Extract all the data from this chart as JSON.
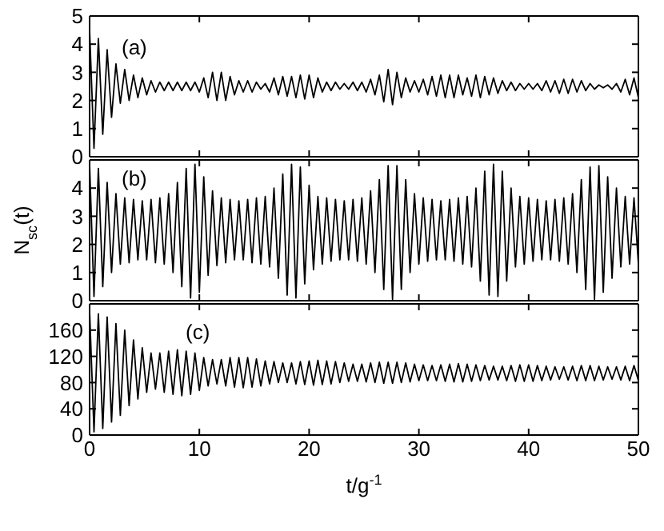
{
  "chart_data": [
    {
      "type": "line",
      "annotations": [
        "(a)"
      ],
      "marker": "none",
      "line_style": "solid",
      "tick_labels": "y",
      "xlim": [
        0,
        50
      ],
      "xticks": [
        0,
        10,
        20,
        30,
        40,
        50
      ],
      "ylim": [
        0,
        5
      ],
      "yticks": [
        0,
        1,
        2,
        3,
        4,
        5
      ],
      "x": [
        0,
        0.4,
        0.8,
        1.2,
        1.6,
        2,
        2.4,
        2.8,
        3.2,
        3.6,
        4,
        4.4,
        4.8,
        5.2,
        5.6,
        6,
        6.4,
        6.8,
        7.2,
        7.6,
        8,
        8.4,
        8.8,
        9.2,
        9.6,
        10,
        10.4,
        10.8,
        11.2,
        11.6,
        12,
        12.4,
        12.8,
        13.2,
        13.6,
        14,
        14.4,
        14.8,
        15.2,
        15.6,
        16,
        16.4,
        16.8,
        17.2,
        17.6,
        18,
        18.4,
        18.8,
        19.2,
        19.6,
        20,
        20.4,
        20.8,
        21.2,
        21.6,
        22,
        22.4,
        22.8,
        23.2,
        23.6,
        24,
        24.4,
        24.8,
        25.2,
        25.6,
        26,
        26.4,
        26.8,
        27.2,
        27.6,
        28,
        28.4,
        28.8,
        29.2,
        29.6,
        30,
        30.4,
        30.8,
        31.2,
        31.6,
        32,
        32.4,
        32.8,
        33.2,
        33.6,
        34,
        34.4,
        34.8,
        35.2,
        35.6,
        36,
        36.4,
        36.8,
        37.2,
        37.6,
        38,
        38.4,
        38.8,
        39.2,
        39.6,
        40,
        40.4,
        40.8,
        41.2,
        41.6,
        42,
        42.4,
        42.8,
        43.2,
        43.6,
        44,
        44.4,
        44.8,
        45.2,
        45.6,
        46,
        46.4,
        46.8,
        47.2,
        47.6,
        48,
        48.4,
        48.8,
        49.2,
        49.6,
        50
      ],
      "series": [
        {
          "color": "#000000",
          "values": [
            4.5,
            0.3,
            4.2,
            0.8,
            3.8,
            1.4,
            3.3,
            1.9,
            3.1,
            2.0,
            2.9,
            2.1,
            2.8,
            2.2,
            2.7,
            2.3,
            2.65,
            2.35,
            2.65,
            2.35,
            2.65,
            2.35,
            2.65,
            2.35,
            2.65,
            2.3,
            2.8,
            2.1,
            3.0,
            2.0,
            3.0,
            2.0,
            2.85,
            2.2,
            2.7,
            2.3,
            2.7,
            2.3,
            2.65,
            2.4,
            2.6,
            2.3,
            2.8,
            2.2,
            2.85,
            2.15,
            2.85,
            2.1,
            2.9,
            2.05,
            2.9,
            2.1,
            2.8,
            2.3,
            2.65,
            2.35,
            2.65,
            2.4,
            2.6,
            2.4,
            2.65,
            2.35,
            2.65,
            2.3,
            2.75,
            2.2,
            2.9,
            1.95,
            3.1,
            1.85,
            3.0,
            2.1,
            2.8,
            2.3,
            2.7,
            2.3,
            2.75,
            2.2,
            2.85,
            2.15,
            2.9,
            2.1,
            2.9,
            2.1,
            2.9,
            2.2,
            2.8,
            2.15,
            2.9,
            2.1,
            2.85,
            2.2,
            2.8,
            2.25,
            2.7,
            2.35,
            2.65,
            2.35,
            2.6,
            2.4,
            2.6,
            2.4,
            2.6,
            2.35,
            2.7,
            2.3,
            2.7,
            2.25,
            2.75,
            2.25,
            2.75,
            2.3,
            2.7,
            2.35,
            2.6,
            2.4,
            2.55,
            2.45,
            2.55,
            2.4,
            2.6,
            2.3,
            2.75,
            2.2,
            2.8,
            2.1
          ]
        }
      ]
    },
    {
      "type": "line",
      "annotations": [
        "(b)"
      ],
      "ylabel": "N$_{sc}$(t)",
      "marker": "none",
      "line_style": "solid",
      "tick_labels": "y",
      "xlim": [
        0,
        50
      ],
      "xticks": [
        0,
        10,
        20,
        30,
        40,
        50
      ],
      "ylim": [
        0,
        5
      ],
      "yticks": [
        0,
        1,
        2,
        3,
        4
      ],
      "x": [
        0,
        0.4,
        0.8,
        1.2,
        1.6,
        2,
        2.4,
        2.8,
        3.2,
        3.6,
        4,
        4.4,
        4.8,
        5.2,
        5.6,
        6,
        6.4,
        6.8,
        7.2,
        7.6,
        8,
        8.4,
        8.8,
        9.2,
        9.6,
        10,
        10.4,
        10.8,
        11.2,
        11.6,
        12,
        12.4,
        12.8,
        13.2,
        13.6,
        14,
        14.4,
        14.8,
        15.2,
        15.6,
        16,
        16.4,
        16.8,
        17.2,
        17.6,
        18,
        18.4,
        18.8,
        19.2,
        19.6,
        20,
        20.4,
        20.8,
        21.2,
        21.6,
        22,
        22.4,
        22.8,
        23.2,
        23.6,
        24,
        24.4,
        24.8,
        25.2,
        25.6,
        26,
        26.4,
        26.8,
        27.2,
        27.6,
        28,
        28.4,
        28.8,
        29.2,
        29.6,
        30,
        30.4,
        30.8,
        31.2,
        31.6,
        32,
        32.4,
        32.8,
        33.2,
        33.6,
        34,
        34.4,
        34.8,
        35.2,
        35.6,
        36,
        36.4,
        36.8,
        37.2,
        37.6,
        38,
        38.4,
        38.8,
        39.2,
        39.6,
        40,
        40.4,
        40.8,
        41.2,
        41.6,
        42,
        42.4,
        42.8,
        43.2,
        43.6,
        44,
        44.4,
        44.8,
        45.2,
        45.6,
        46,
        46.4,
        46.8,
        47.2,
        47.6,
        48,
        48.4,
        48.8,
        49.2,
        49.6,
        50
      ],
      "series": [
        {
          "color": "#000000",
          "values": [
            4.85,
            0.15,
            4.7,
            0.5,
            4.2,
            1.0,
            3.8,
            1.3,
            3.65,
            1.35,
            3.6,
            1.45,
            3.55,
            1.45,
            3.6,
            1.35,
            3.65,
            1.3,
            3.8,
            1.0,
            4.2,
            0.5,
            4.7,
            0.1,
            4.85,
            0.3,
            4.4,
            0.9,
            3.9,
            1.25,
            3.65,
            1.35,
            3.6,
            1.45,
            3.55,
            1.45,
            3.6,
            1.35,
            3.65,
            1.3,
            3.7,
            1.2,
            4.0,
            0.8,
            4.5,
            0.2,
            4.85,
            0.1,
            4.75,
            0.6,
            4.1,
            1.1,
            3.7,
            1.3,
            3.65,
            1.4,
            3.6,
            1.45,
            3.55,
            1.45,
            3.6,
            1.4,
            3.65,
            1.3,
            3.9,
            1.0,
            4.3,
            0.4,
            4.8,
            0.05,
            4.8,
            0.4,
            4.3,
            1.0,
            3.8,
            1.3,
            3.65,
            1.4,
            3.6,
            1.45,
            3.55,
            1.45,
            3.6,
            1.4,
            3.65,
            1.3,
            3.7,
            1.2,
            4.0,
            0.7,
            4.6,
            0.2,
            4.85,
            0.15,
            4.6,
            0.7,
            4.0,
            1.2,
            3.7,
            1.3,
            3.65,
            1.4,
            3.6,
            1.45,
            3.55,
            1.45,
            3.6,
            1.4,
            3.65,
            1.3,
            3.8,
            1.0,
            4.3,
            0.4,
            4.75,
            0.05,
            4.8,
            0.3,
            4.4,
            0.8,
            4.0,
            1.2,
            3.7,
            1.3,
            3.65,
            1.3
          ]
        }
      ]
    },
    {
      "type": "line",
      "annotations": [
        "(c)"
      ],
      "xlabel": "t/g$^{-1}$",
      "marker": "none",
      "line_style": "solid",
      "xlim": [
        0,
        50
      ],
      "xticks": [
        0,
        10,
        20,
        30,
        40,
        50
      ],
      "ylim": [
        0,
        200
      ],
      "yticks": [
        0,
        40,
        80,
        120,
        160
      ],
      "x": [
        0,
        0.4,
        0.8,
        1.2,
        1.6,
        2,
        2.4,
        2.8,
        3.2,
        3.6,
        4,
        4.4,
        4.8,
        5.2,
        5.6,
        6,
        6.4,
        6.8,
        7.2,
        7.6,
        8,
        8.4,
        8.8,
        9.2,
        9.6,
        10,
        10.4,
        10.8,
        11.2,
        11.6,
        12,
        12.4,
        12.8,
        13.2,
        13.6,
        14,
        14.4,
        14.8,
        15.2,
        15.6,
        16,
        16.4,
        16.8,
        17.2,
        17.6,
        18,
        18.4,
        18.8,
        19.2,
        19.6,
        20,
        20.4,
        20.8,
        21.2,
        21.6,
        22,
        22.4,
        22.8,
        23.2,
        23.6,
        24,
        24.4,
        24.8,
        25.2,
        25.6,
        26,
        26.4,
        26.8,
        27.2,
        27.6,
        28,
        28.4,
        28.8,
        29.2,
        29.6,
        30,
        30.4,
        30.8,
        31.2,
        31.6,
        32,
        32.4,
        32.8,
        33.2,
        33.6,
        34,
        34.4,
        34.8,
        35.2,
        35.6,
        36,
        36.4,
        36.8,
        37.2,
        37.6,
        38,
        38.4,
        38.8,
        39.2,
        39.6,
        40,
        40.4,
        40.8,
        41.2,
        41.6,
        42,
        42.4,
        42.8,
        43.2,
        43.6,
        44,
        44.4,
        44.8,
        45.2,
        45.6,
        46,
        46.4,
        46.8,
        47.2,
        47.6,
        48,
        48.4,
        48.8,
        49.2,
        49.6,
        50
      ],
      "series": [
        {
          "color": "#000000",
          "values": [
            190,
            5,
            185,
            10,
            180,
            20,
            170,
            30,
            160,
            45,
            145,
            55,
            133,
            65,
            125,
            70,
            125,
            65,
            128,
            62,
            130,
            60,
            128,
            62,
            125,
            68,
            118,
            75,
            115,
            78,
            115,
            75,
            118,
            73,
            118,
            72,
            118,
            73,
            116,
            75,
            113,
            78,
            112,
            80,
            110,
            80,
            110,
            78,
            112,
            77,
            113,
            76,
            114,
            77,
            113,
            78,
            112,
            80,
            110,
            82,
            108,
            82,
            108,
            81,
            110,
            80,
            111,
            79,
            111,
            79,
            111,
            80,
            110,
            81,
            108,
            83,
            107,
            83,
            106,
            83,
            107,
            82,
            108,
            81,
            109,
            81,
            108,
            82,
            107,
            83,
            106,
            84,
            105,
            84,
            105,
            83,
            106,
            82,
            107,
            82,
            107,
            82,
            106,
            83,
            105,
            84,
            104,
            85,
            104,
            84,
            105,
            83,
            106,
            83,
            106,
            83,
            105,
            84,
            104,
            85,
            104,
            84,
            105,
            83,
            106,
            83
          ]
        }
      ]
    }
  ]
}
